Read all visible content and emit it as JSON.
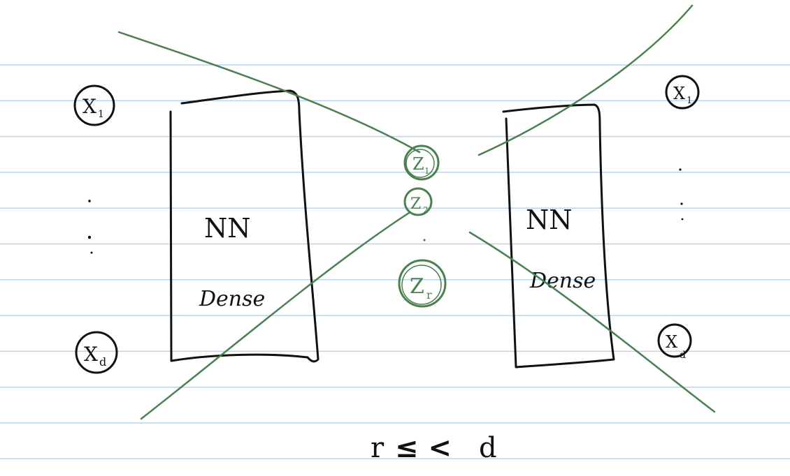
{
  "colors": {
    "paper": "#ffffff",
    "ruled_line": "#b9d4ee",
    "ink": "#111111",
    "green_ink": "#4a7f50"
  },
  "encoder": {
    "label": "NN",
    "sublabel": "Dense"
  },
  "decoder": {
    "label": "NN",
    "sublabel": "Dense"
  },
  "inputs": {
    "first": "X",
    "first_sub": "1",
    "last": "X",
    "last_sub": "d"
  },
  "outputs": {
    "first": "X",
    "first_sub": "1",
    "last": "X",
    "last_sub": "d"
  },
  "latent": {
    "z1": "Z",
    "z1_sub": "1",
    "z2": "Z",
    "z2_sub": "2",
    "zr": "Z",
    "zr_sub": "r"
  },
  "constraint": {
    "left": "r",
    "ops": "≤ <",
    "right": "d"
  }
}
